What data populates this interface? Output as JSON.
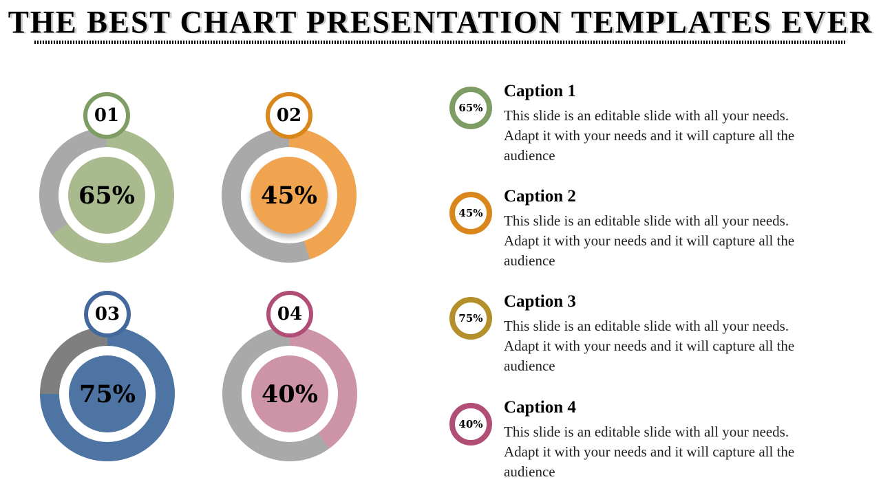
{
  "slide": {
    "title": "THE BEST CHART PRESENTATION TEMPLATES EVER"
  },
  "colors": {
    "green_fill": "#a8ba8e",
    "green_stroke": "#7e9d64",
    "orange_fill": "#f0a44f",
    "orange_stroke": "#d9861c",
    "blue_fill": "#4e74a4",
    "blue_stroke": "#44689b",
    "pink_fill": "#cd94a8",
    "berry_stroke": "#b04e75",
    "gold_stroke": "#b3902b",
    "track_light": "#a9a9a9",
    "track_dark": "#7f7f7f"
  },
  "charts": [
    {
      "id": "01",
      "value": 65,
      "label": "65%",
      "fill": "#a8ba8e",
      "stroke": "#7e9d64",
      "track": "#a9a9a9"
    },
    {
      "id": "02",
      "value": 45,
      "label": "45%",
      "fill": "#f0a44f",
      "stroke": "#d9861c",
      "track": "#a9a9a9"
    },
    {
      "id": "03",
      "value": 75,
      "label": "75%",
      "fill": "#4e74a4",
      "stroke": "#44689b",
      "track": "#7f7f7f"
    },
    {
      "id": "04",
      "value": 40,
      "label": "40%",
      "fill": "#cd94a8",
      "stroke": "#b04e75",
      "track": "#a9a9a9"
    }
  ],
  "captions": [
    {
      "badge": "65%",
      "stroke": "#7e9d64",
      "title": "Caption 1",
      "body": "This slide is an editable slide with all your needs. Adapt it with your needs and it will capture all the audience"
    },
    {
      "badge": "45%",
      "stroke": "#d9861c",
      "title": "Caption 2",
      "body": "This slide is an editable slide with all your needs. Adapt it with your needs and it will capture all the audience"
    },
    {
      "badge": "75%",
      "stroke": "#b3902b",
      "title": "Caption 3",
      "body": "This slide is an editable slide with all your needs. Adapt it with your needs and it will capture all the audience"
    },
    {
      "badge": "40%",
      "stroke": "#b04e75",
      "title": "Caption 4",
      "body": "This slide is an editable slide with all your needs. Adapt it with your needs and it will capture all the audience"
    }
  ],
  "chart_data": {
    "type": "pie",
    "variant": "donut-progress",
    "title": "THE BEST CHART PRESENTATION TEMPLATES EVER",
    "legend_position": "right",
    "series": [
      {
        "name": "01",
        "caption": "Caption 1",
        "value": 65,
        "unit": "%",
        "remainder": 35
      },
      {
        "name": "02",
        "caption": "Caption 2",
        "value": 45,
        "unit": "%",
        "remainder": 55
      },
      {
        "name": "03",
        "caption": "Caption 3",
        "value": 75,
        "unit": "%",
        "remainder": 25
      },
      {
        "name": "04",
        "caption": "Caption 4",
        "value": 40,
        "unit": "%",
        "remainder": 60
      }
    ]
  }
}
